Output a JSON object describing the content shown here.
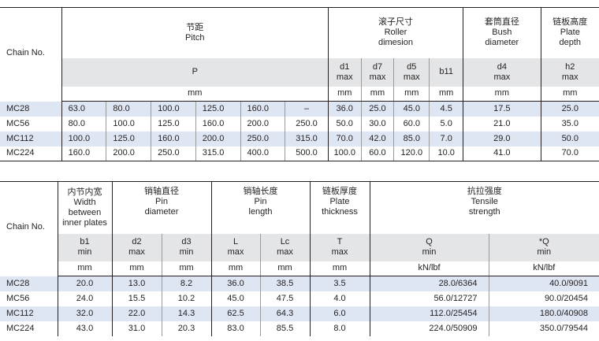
{
  "table1": {
    "chain_no_label": "Chain No.",
    "headers": {
      "pitch": {
        "zh": "节距",
        "en": "Pitch",
        "symbol": "P",
        "unit": "mm"
      },
      "roller": {
        "zh": "滚子尺寸",
        "en": "Roller dimesion",
        "cols": [
          {
            "sym": "d1",
            "lim": "max"
          },
          {
            "sym": "d7",
            "lim": "max"
          },
          {
            "sym": "d5",
            "lim": "max"
          },
          {
            "sym": "b11",
            "lim": ""
          }
        ],
        "unit": "mm"
      },
      "bush": {
        "zh": "套筒直径",
        "en1": "Bush",
        "en2": "diameter",
        "sym": "d4",
        "lim": "max",
        "unit": "mm"
      },
      "plate": {
        "zh": "链板高度",
        "en1": "Plate",
        "en2": "depth",
        "sym": "h2",
        "lim": "max",
        "unit": "mm"
      }
    },
    "rows": [
      {
        "name": "MC28",
        "p": [
          "63.0",
          "80.0",
          "100.0",
          "125.0",
          "160.0",
          "–"
        ],
        "d1": "36.0",
        "d7": "25.0",
        "d5": "45.0",
        "b11": "4.5",
        "d4": "17.5",
        "h2": "25.0"
      },
      {
        "name": "MC56",
        "p": [
          "80.0",
          "100.0",
          "125.0",
          "160.0",
          "200.0",
          "250.0"
        ],
        "d1": "50.0",
        "d7": "30.0",
        "d5": "60.0",
        "b11": "5.0",
        "d4": "21.0",
        "h2": "35.0"
      },
      {
        "name": "MC112",
        "p": [
          "100.0",
          "125.0",
          "160.0",
          "200.0",
          "250.0",
          "315.0"
        ],
        "d1": "70.0",
        "d7": "42.0",
        "d5": "85.0",
        "b11": "7.0",
        "d4": "29.0",
        "h2": "50.0"
      },
      {
        "name": "MC224",
        "p": [
          "160.0",
          "200.0",
          "250.0",
          "315.0",
          "400.0",
          "500.0"
        ],
        "d1": "100.0",
        "d7": "60.0",
        "d5": "120.0",
        "b11": "10.0",
        "d4": "41.0",
        "h2": "70.0"
      }
    ]
  },
  "table2": {
    "chain_no_label": "Chain No.",
    "headers": {
      "inner": {
        "zh": "内节内宽",
        "en": [
          "Width",
          "between",
          "inner plates"
        ],
        "sym": "b1",
        "lim": "min",
        "unit": "mm"
      },
      "pin_d": {
        "zh": "销轴直径",
        "en": [
          "Pin",
          "diameter"
        ],
        "cols": [
          {
            "sym": "d2",
            "lim": "max"
          },
          {
            "sym": "d3",
            "lim": "min"
          }
        ],
        "unit": "mm"
      },
      "pin_l": {
        "zh": "销轴长度",
        "en": [
          "Pin",
          "length"
        ],
        "cols": [
          {
            "sym": "L",
            "lim": "max"
          },
          {
            "sym": "Lc",
            "lim": "max"
          }
        ],
        "unit": "mm"
      },
      "thick": {
        "zh": "链板厚度",
        "en": [
          "Plate",
          "thickness"
        ],
        "sym": "T",
        "lim": "max",
        "unit": "mm"
      },
      "tensile": {
        "zh": "抗拉强度",
        "en": [
          "Tensile",
          "strength"
        ],
        "cols": [
          {
            "sym": "Q",
            "lim": "min",
            "unit": "kN/lbf"
          },
          {
            "sym": "*Q",
            "lim": "min",
            "unit": "kN/lbf"
          }
        ]
      }
    },
    "rows": [
      {
        "name": "MC28",
        "b1": "20.0",
        "d2": "13.0",
        "d3": "8.2",
        "L": "36.0",
        "Lc": "38.5",
        "T": "3.5",
        "Q": "28.0/6364",
        "Q2": "40.0/9091"
      },
      {
        "name": "MC56",
        "b1": "24.0",
        "d2": "15.5",
        "d3": "10.2",
        "L": "45.0",
        "Lc": "47.5",
        "T": "4.0",
        "Q": "56.0/12727",
        "Q2": "90.0/20454"
      },
      {
        "name": "MC112",
        "b1": "32.0",
        "d2": "22.0",
        "d3": "14.3",
        "L": "62.5",
        "Lc": "64.3",
        "T": "6.0",
        "Q": "112.0/25454",
        "Q2": "180.0/40908"
      },
      {
        "name": "MC224",
        "b1": "43.0",
        "d2": "31.0",
        "d3": "20.3",
        "L": "83.0",
        "Lc": "85.5",
        "T": "8.0",
        "Q": "224.0/50909",
        "Q2": "350.0/79544"
      }
    ]
  }
}
